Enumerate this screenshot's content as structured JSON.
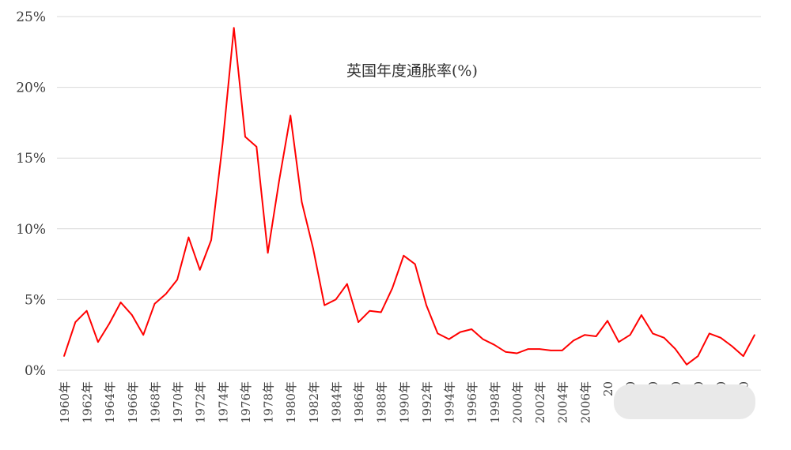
{
  "chart_data": {
    "type": "line",
    "title": "英国年度通胀率(%)",
    "xlabel": "",
    "ylabel": "",
    "ylim": [
      0,
      25
    ],
    "grid": true,
    "line_color": "#ff0000",
    "y_ticks": [
      "0%",
      "5%",
      "10%",
      "15%",
      "20%",
      "25%"
    ],
    "x_tick_labels": [
      "1960年",
      "1962年",
      "1964年",
      "1966年",
      "1968年",
      "1970年",
      "1972年",
      "1974年",
      "1976年",
      "1978年",
      "1980年",
      "1982年",
      "1984年",
      "1986年",
      "1988年",
      "1990年",
      "1992年",
      "1994年",
      "1996年",
      "1998年",
      "2000年",
      "2002年",
      "2004年",
      "2006年",
      "20",
      "20",
      "20",
      "20",
      "20",
      "20",
      "20"
    ],
    "obscured_tick_labels_from_index": 24,
    "x": [
      1960,
      1961,
      1962,
      1963,
      1964,
      1965,
      1966,
      1967,
      1968,
      1969,
      1970,
      1971,
      1972,
      1973,
      1974,
      1975,
      1976,
      1977,
      1978,
      1979,
      1980,
      1981,
      1982,
      1983,
      1984,
      1985,
      1986,
      1987,
      1988,
      1989,
      1990,
      1991,
      1992,
      1993,
      1994,
      1995,
      1996,
      1997,
      1998,
      1999,
      2000,
      2001,
      2002,
      2003,
      2004,
      2005,
      2006,
      2007,
      2008,
      2009,
      2010,
      2011,
      2012,
      2013,
      2014,
      2015,
      2016,
      2017,
      2018,
      2019,
      2020,
      2021
    ],
    "series": [
      {
        "values": [
          1.0,
          3.4,
          4.2,
          2.0,
          3.3,
          4.8,
          3.9,
          2.5,
          4.7,
          5.4,
          6.4,
          9.4,
          7.1,
          9.2,
          16.0,
          24.2,
          16.5,
          15.8,
          8.3,
          13.4,
          18.0,
          11.9,
          8.6,
          4.6,
          5.0,
          6.1,
          3.4,
          4.2,
          4.1,
          5.8,
          8.1,
          7.5,
          4.6,
          2.6,
          2.2,
          2.7,
          2.9,
          2.2,
          1.8,
          1.3,
          1.2,
          1.5,
          1.5,
          1.4,
          1.4,
          2.1,
          2.5,
          2.4,
          3.5,
          2.0,
          2.5,
          3.9,
          2.6,
          2.3,
          1.5,
          0.4,
          1.0,
          2.6,
          2.3,
          1.7,
          1.0,
          2.5
        ]
      }
    ]
  }
}
